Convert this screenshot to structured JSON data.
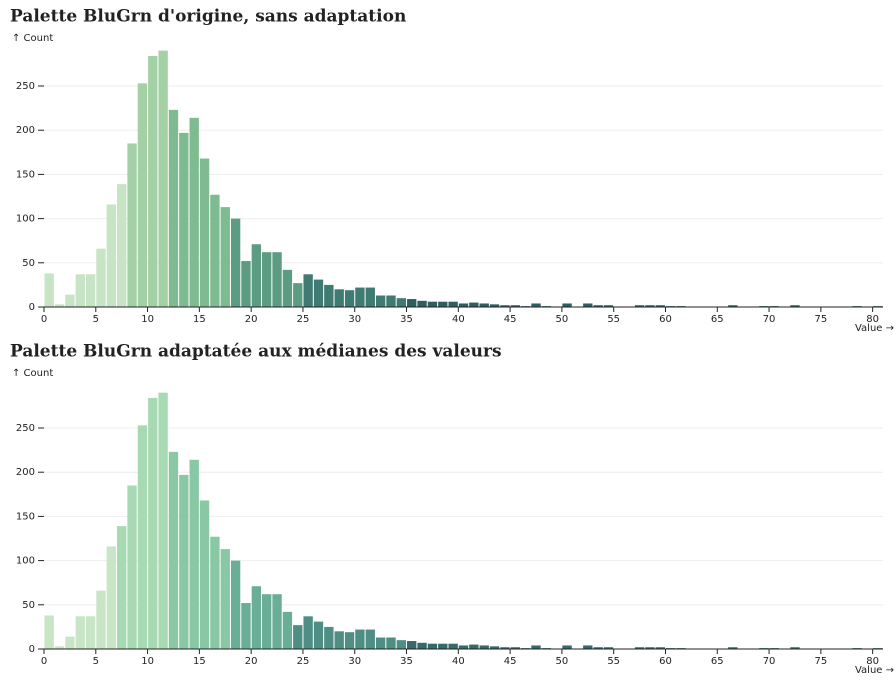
{
  "chart_data": [
    {
      "type": "histogram",
      "title": "Palette BluGrn d'origine, sans adaptation",
      "y_label": "↑ Count",
      "x_label": "Value →",
      "bins": [
        0,
        1,
        2,
        3,
        4,
        5,
        6,
        7,
        8,
        9,
        10,
        11,
        12,
        13,
        14,
        15,
        16,
        17,
        18,
        19,
        20,
        21,
        22,
        23,
        24,
        25,
        26,
        27,
        28,
        29,
        30,
        31,
        32,
        33,
        34,
        35,
        36,
        37,
        38,
        39,
        40,
        41,
        42,
        43,
        44,
        45,
        46,
        47,
        48,
        49,
        50,
        51,
        52,
        53,
        54,
        55,
        56,
        57,
        58,
        59,
        60,
        61,
        62,
        63,
        64,
        65,
        66,
        67,
        68,
        69,
        70,
        71,
        72,
        73,
        74,
        75,
        76,
        77,
        78,
        79,
        80,
        81
      ],
      "values": [
        38,
        3,
        14,
        37,
        37,
        66,
        116,
        139,
        185,
        253,
        284,
        290,
        223,
        197,
        214,
        168,
        127,
        113,
        100,
        52,
        71,
        62,
        62,
        42,
        27,
        37,
        31,
        25,
        20,
        19,
        22,
        22,
        13,
        13,
        10,
        9,
        7,
        6,
        6,
        6,
        4,
        5,
        4,
        3,
        2,
        2,
        1,
        4,
        1,
        0,
        4,
        0,
        4,
        2,
        2,
        0,
        0,
        2,
        2,
        2,
        1,
        1,
        0,
        0,
        0,
        0,
        2,
        0,
        0,
        1,
        1,
        0,
        2,
        0,
        0,
        0,
        0,
        0,
        1,
        0,
        1
      ],
      "color_scale": {
        "domain": [
          8,
          12,
          18,
          25,
          35
        ],
        "range": [
          "#c7e5c5",
          "#a3d1a5",
          "#7fbb91",
          "#5c9c82",
          "#3f7a73",
          "#2e5f60"
        ]
      },
      "xlim": [
        0,
        81
      ],
      "ylim": [
        0,
        290
      ],
      "xticks": [
        0,
        5,
        10,
        15,
        20,
        25,
        30,
        35,
        40,
        45,
        50,
        55,
        60,
        65,
        70,
        75,
        80
      ],
      "yticks": [
        0,
        50,
        100,
        150,
        200,
        250
      ],
      "grid": true
    },
    {
      "type": "histogram",
      "title": "Palette BluGrn adaptatée aux médianes des valeurs",
      "y_label": "↑ Count",
      "x_label": "Value →",
      "bins": [
        0,
        1,
        2,
        3,
        4,
        5,
        6,
        7,
        8,
        9,
        10,
        11,
        12,
        13,
        14,
        15,
        16,
        17,
        18,
        19,
        20,
        21,
        22,
        23,
        24,
        25,
        26,
        27,
        28,
        29,
        30,
        31,
        32,
        33,
        34,
        35,
        36,
        37,
        38,
        39,
        40,
        41,
        42,
        43,
        44,
        45,
        46,
        47,
        48,
        49,
        50,
        51,
        52,
        53,
        54,
        55,
        56,
        57,
        58,
        59,
        60,
        61,
        62,
        63,
        64,
        65,
        66,
        67,
        68,
        69,
        70,
        71,
        72,
        73,
        74,
        75,
        76,
        77,
        78,
        79,
        80,
        81
      ],
      "values": [
        38,
        3,
        14,
        37,
        37,
        66,
        116,
        139,
        185,
        253,
        284,
        290,
        223,
        197,
        214,
        168,
        127,
        113,
        100,
        52,
        71,
        62,
        62,
        42,
        27,
        37,
        31,
        25,
        20,
        19,
        22,
        22,
        13,
        13,
        10,
        9,
        7,
        6,
        6,
        6,
        4,
        5,
        4,
        3,
        2,
        2,
        1,
        4,
        1,
        0,
        4,
        0,
        4,
        2,
        2,
        0,
        0,
        2,
        2,
        2,
        1,
        1,
        0,
        0,
        0,
        0,
        2,
        0,
        0,
        1,
        1,
        0,
        2,
        0,
        0,
        0,
        0,
        0,
        1,
        0,
        1
      ],
      "color_scale": {
        "domain": [
          7,
          12,
          18,
          24,
          35
        ],
        "range": [
          "#c8e6c6",
          "#a7dab3",
          "#8ac7a4",
          "#6aae97",
          "#4e8e84",
          "#36696a"
        ]
      },
      "xlim": [
        0,
        81
      ],
      "ylim": [
        0,
        290
      ],
      "xticks": [
        0,
        5,
        10,
        15,
        20,
        25,
        30,
        35,
        40,
        45,
        50,
        55,
        60,
        65,
        70,
        75,
        80
      ],
      "yticks": [
        0,
        50,
        100,
        150,
        200,
        250
      ],
      "grid": true
    }
  ]
}
